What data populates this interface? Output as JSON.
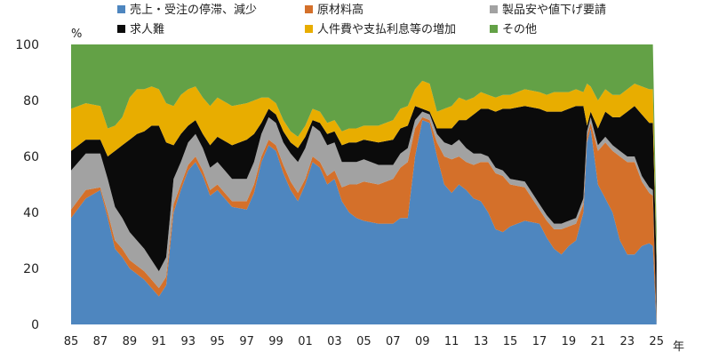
{
  "chart_data": {
    "type": "area",
    "stacked": true,
    "title": "",
    "ylabel": "%",
    "xlabel": "年",
    "ylim": [
      0,
      100
    ],
    "yticks": [
      0,
      20,
      40,
      60,
      80,
      100
    ],
    "xticks": [
      "85",
      "87",
      "89",
      "91",
      "93",
      "95",
      "97",
      "99",
      "01",
      "03",
      "05",
      "07",
      "09",
      "11",
      "13",
      "15",
      "17",
      "19",
      "21",
      "23",
      "25"
    ],
    "legend_position": "top",
    "x": [
      1985.0,
      1986.0,
      1987.0,
      1987.5,
      1988.0,
      1988.5,
      1989.0,
      1989.5,
      1990.0,
      1990.5,
      1991.0,
      1991.5,
      1992.0,
      1992.5,
      1993.0,
      1993.5,
      1994.0,
      1994.5,
      1995.0,
      1996.0,
      1997.0,
      1997.5,
      1998.0,
      1998.5,
      1999.0,
      1999.5,
      2000.0,
      2000.5,
      2001.0,
      2001.5,
      2002.0,
      2002.5,
      2003.0,
      2003.5,
      2004.0,
      2004.5,
      2005.0,
      2006.0,
      2007.0,
      2007.5,
      2008.0,
      2008.5,
      2009.0,
      2009.5,
      2010.0,
      2010.5,
      2011.0,
      2011.5,
      2012.0,
      2012.5,
      2013.0,
      2013.5,
      2014.0,
      2014.5,
      2015.0,
      2016.0,
      2017.0,
      2017.5,
      2018.0,
      2018.5,
      2019.0,
      2019.5,
      2020.0,
      2020.25,
      2020.5,
      2021.0,
      2021.5,
      2022.0,
      2022.5,
      2023.0,
      2023.5,
      2024.0,
      2024.5,
      2024.75,
      2025.0
    ],
    "series": [
      {
        "name": "売上・受注の停滞、減少",
        "color": "#4e86bf",
        "values": [
          38,
          45,
          48,
          38,
          27,
          24,
          20,
          18,
          16,
          13,
          10,
          14,
          40,
          48,
          55,
          58,
          53,
          46,
          48,
          42,
          41,
          47,
          58,
          64,
          62,
          54,
          48,
          44,
          50,
          58,
          56,
          50,
          52,
          44,
          40,
          38,
          37,
          36,
          36,
          38,
          38,
          60,
          73,
          72,
          60,
          50,
          47,
          50,
          48,
          45,
          44,
          40,
          34,
          33,
          35,
          37,
          36,
          31,
          27,
          25,
          28,
          30,
          40,
          65,
          70,
          50,
          45,
          40,
          30,
          25,
          25,
          28,
          29,
          28,
          0
        ]
      },
      {
        "name": "原材料高",
        "color": "#d4702a",
        "values": [
          3,
          3,
          1,
          2,
          3,
          3,
          3,
          3,
          3,
          3,
          3,
          3,
          3,
          2,
          2,
          2,
          2,
          2,
          2,
          2,
          3,
          3,
          2,
          2,
          2,
          3,
          3,
          3,
          2,
          2,
          2,
          3,
          3,
          5,
          10,
          12,
          14,
          14,
          16,
          18,
          20,
          10,
          1,
          1,
          5,
          10,
          12,
          10,
          10,
          12,
          14,
          18,
          20,
          20,
          15,
          12,
          5,
          6,
          7,
          9,
          7,
          6,
          3,
          2,
          2,
          12,
          20,
          22,
          30,
          33,
          33,
          23,
          18,
          18,
          0
        ]
      },
      {
        "name": "製品安や値下げ要請",
        "color": "#a2a2a2",
        "values": [
          14,
          13,
          12,
          12,
          12,
          11,
          10,
          9,
          8,
          7,
          6,
          7,
          9,
          8,
          8,
          8,
          8,
          8,
          8,
          8,
          8,
          8,
          8,
          8,
          8,
          8,
          10,
          11,
          11,
          11,
          11,
          11,
          10,
          9,
          8,
          8,
          8,
          7,
          5,
          5,
          5,
          3,
          2,
          2,
          3,
          5,
          5,
          6,
          5,
          4,
          3,
          2,
          2,
          2,
          2,
          2,
          2,
          2,
          2,
          2,
          2,
          2,
          2,
          2,
          2,
          2,
          2,
          2,
          2,
          2,
          2,
          2,
          2,
          2,
          0
        ]
      },
      {
        "name": "求人難",
        "color": "#0b0b0b",
        "values": [
          7,
          5,
          5,
          8,
          20,
          26,
          33,
          38,
          42,
          48,
          52,
          41,
          12,
          10,
          6,
          5,
          5,
          8,
          9,
          12,
          14,
          10,
          4,
          3,
          3,
          4,
          4,
          5,
          4,
          2,
          3,
          4,
          4,
          6,
          7,
          7,
          7,
          8,
          9,
          9,
          8,
          5,
          1,
          1,
          2,
          5,
          6,
          7,
          10,
          14,
          16,
          17,
          20,
          22,
          25,
          27,
          34,
          37,
          40,
          40,
          40,
          40,
          33,
          2,
          2,
          6,
          9,
          10,
          12,
          16,
          18,
          22,
          23,
          24,
          22
        ]
      },
      {
        "name": "人件費や支払利息等の増加",
        "color": "#e8ad00",
        "values": [
          15,
          13,
          12,
          10,
          9,
          10,
          15,
          16,
          15,
          14,
          13,
          14,
          14,
          14,
          13,
          12,
          13,
          14,
          14,
          14,
          13,
          12,
          9,
          4,
          4,
          4,
          4,
          4,
          4,
          4,
          4,
          4,
          4,
          5,
          5,
          5,
          5,
          6,
          7,
          7,
          7,
          6,
          10,
          10,
          6,
          7,
          8,
          8,
          7,
          6,
          6,
          5,
          5,
          5,
          5,
          6,
          6,
          6,
          7,
          7,
          6,
          6,
          5,
          15,
          9,
          10,
          8,
          8,
          8,
          8,
          8,
          10,
          12,
          12,
          0
        ]
      },
      {
        "name": "その他",
        "color": "#63a146",
        "values": [
          23,
          21,
          22,
          30,
          29,
          26,
          19,
          16,
          16,
          15,
          16,
          21,
          22,
          18,
          16,
          15,
          19,
          22,
          19,
          22,
          21,
          20,
          19,
          19,
          21,
          27,
          31,
          33,
          29,
          23,
          24,
          28,
          27,
          31,
          30,
          30,
          29,
          29,
          27,
          23,
          22,
          16,
          13,
          14,
          24,
          23,
          22,
          19,
          20,
          19,
          17,
          18,
          19,
          18,
          18,
          16,
          17,
          18,
          17,
          17,
          17,
          16,
          17,
          14,
          15,
          20,
          16,
          18,
          18,
          16,
          14,
          15,
          16,
          16,
          12
        ]
      }
    ]
  }
}
